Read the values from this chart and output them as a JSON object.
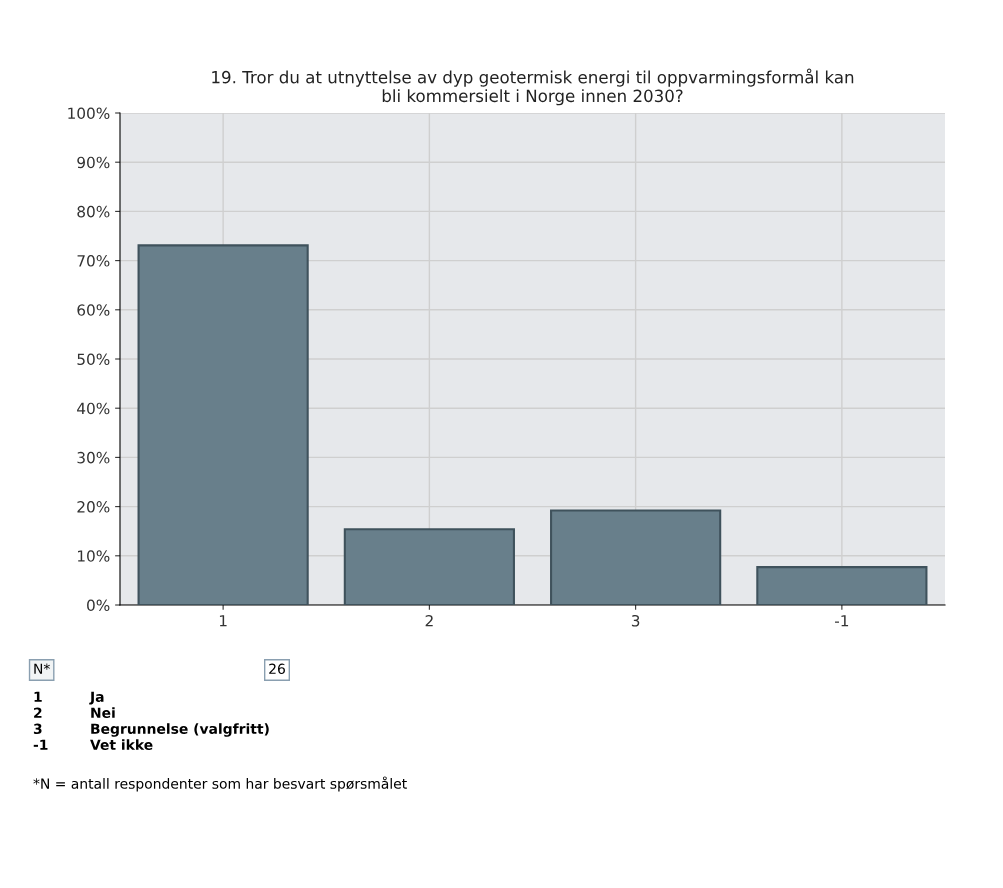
{
  "chart_data": {
    "type": "bar",
    "title": "19. Tror du at utnyttelse av dyp geotermisk energi til oppvarmingsformål kan\nbli kommersielt i Norge innen 2030?",
    "categories": [
      "1",
      "2",
      "3",
      "-1"
    ],
    "values": [
      73.1,
      15.4,
      19.2,
      7.7
    ],
    "color": "#687f8b",
    "ylim": [
      0,
      100
    ],
    "yticks": [
      {
        "value": 0,
        "label": "0%"
      },
      {
        "value": 10,
        "label": "10%"
      },
      {
        "value": 20,
        "label": "20%"
      },
      {
        "value": 30,
        "label": "30%"
      },
      {
        "value": 40,
        "label": "40%"
      },
      {
        "value": 50,
        "label": "50%"
      },
      {
        "value": 60,
        "label": "60%"
      },
      {
        "value": 70,
        "label": "70%"
      },
      {
        "value": 80,
        "label": "80%"
      },
      {
        "value": 90,
        "label": "90%"
      },
      {
        "value": 100,
        "label": "100%"
      }
    ],
    "grid": true,
    "annotations": [
      "N*",
      "26",
      "1",
      "Ja",
      "2",
      "Nei",
      "3",
      "Begrunnelse (valgfritt)",
      "-1",
      "Vet ikke",
      "*N = antall respondenter som har besvart spørsmålet"
    ]
  }
}
